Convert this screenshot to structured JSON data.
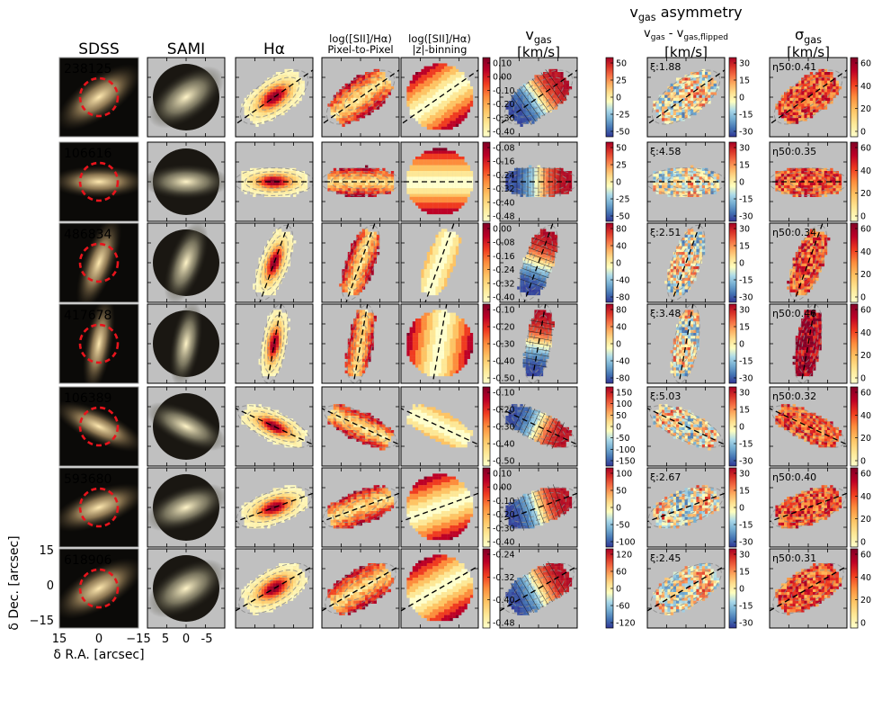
{
  "chart_data": {
    "type": "image-grid",
    "columns": [
      {
        "key": "sdss",
        "title": "SDSS",
        "subtitle": ""
      },
      {
        "key": "sami",
        "title": "SAMI",
        "subtitle": ""
      },
      {
        "key": "halpha",
        "title": "Hα",
        "subtitle": ""
      },
      {
        "key": "sii_pix",
        "title": "log([SII]/Hα)",
        "subtitle": "Pixel-to-Pixel"
      },
      {
        "key": "sii_z",
        "title": "log([SII]/Hα)",
        "subtitle": "|z|-binning"
      },
      {
        "key": "vgas",
        "title": "v",
        "title_sub": "gas",
        "subtitle": "[km/s]"
      },
      {
        "key": "vasym",
        "title": "v",
        "title_sub": "gas",
        "title_rest": " asymmetry",
        "line2": "v",
        "line2_sub": "gas",
        "line2_mid": " - v",
        "line2_sub2": "gas,flipped",
        "subtitle": "[km/s]"
      },
      {
        "key": "sigma",
        "title": "σ",
        "title_sub": "gas",
        "subtitle": "[km/s]"
      }
    ],
    "galaxies": [
      {
        "id": "238125",
        "pa": -35,
        "ba": 0.45,
        "xi": "ξ:1.88",
        "eta": "η50:0.41",
        "sii_ticks": [
          "0.10",
          "0.00",
          "-0.10",
          "-0.20",
          "-0.30",
          "-0.40"
        ],
        "v_ticks": [
          "50",
          "25",
          "0",
          "-25",
          "-50"
        ],
        "vmax": 60
      },
      {
        "id": "106616",
        "pa": 0,
        "ba": 0.35,
        "xi": "ξ:4.58",
        "eta": "η50:0.35",
        "sii_ticks": [
          "-0.08",
          "-0.16",
          "-0.24",
          "-0.32",
          "-0.40",
          "-0.48"
        ],
        "v_ticks": [
          "50",
          "25",
          "0",
          "-25",
          "-50"
        ],
        "vmax": 60
      },
      {
        "id": "486834",
        "pa": -70,
        "ba": 0.35,
        "xi": "ξ:2.51",
        "eta": "η50:0.34",
        "sii_ticks": [
          "0.00",
          "-0.08",
          "-0.16",
          "-0.24",
          "-0.32",
          "-0.40"
        ],
        "v_ticks": [
          "80",
          "40",
          "0",
          "-40",
          "-80"
        ],
        "vmax": 90
      },
      {
        "id": "417678",
        "pa": -80,
        "ba": 0.3,
        "xi": "ξ:3.48",
        "eta": "η50:0.46",
        "sii_ticks": [
          "-0.10",
          "-0.20",
          "-0.30",
          "-0.40",
          "-0.50"
        ],
        "v_ticks": [
          "80",
          "40",
          "0",
          "-40",
          "-80"
        ],
        "vmax": 90
      },
      {
        "id": "106389",
        "pa": 25,
        "ba": 0.35,
        "xi": "ξ:5.03",
        "eta": "η50:0.32",
        "sii_ticks": [
          "-0.10",
          "-0.20",
          "-0.30",
          "-0.40",
          "-0.50"
        ],
        "v_ticks": [
          "150",
          "100",
          "50",
          "0",
          "-50",
          "-100",
          "-150"
        ],
        "vmax": 160
      },
      {
        "id": "593680",
        "pa": -20,
        "ba": 0.4,
        "xi": "ξ:2.67",
        "eta": "η50:0.40",
        "sii_ticks": [
          "0.10",
          "0.00",
          "-0.10",
          "-0.20",
          "-0.30",
          "-0.40"
        ],
        "v_ticks": [
          "100",
          "50",
          "0",
          "-50",
          "-100"
        ],
        "vmax": 110
      },
      {
        "id": "618906",
        "pa": -30,
        "ba": 0.45,
        "xi": "ξ:2.45",
        "eta": "η50:0.31",
        "sii_ticks": [
          "-0.24",
          "-0.32",
          "-0.40",
          "-0.48"
        ],
        "v_ticks": [
          "120",
          "60",
          "0",
          "-60",
          "-120"
        ],
        "vmax": 130
      }
    ],
    "vasym_ticks": [
      "30",
      "15",
      "0",
      "-15",
      "-30"
    ],
    "sigma_ticks": [
      "60",
      "40",
      "20",
      "0"
    ],
    "axes": {
      "sdss": {
        "ylabel": "δ Dec. [arcsec]",
        "xlabel": "δ R.A. [arcsec]",
        "yticks": [
          "15",
          "0",
          "−15"
        ],
        "xticks": [
          "15",
          "0",
          "−15"
        ]
      },
      "sami": {
        "xticks": [
          "5",
          "0",
          "-5"
        ]
      }
    },
    "colors": {
      "panel_bg": "#c0c0c0",
      "circle": "#e8141c",
      "label_light": "#dcdcdc"
    }
  }
}
